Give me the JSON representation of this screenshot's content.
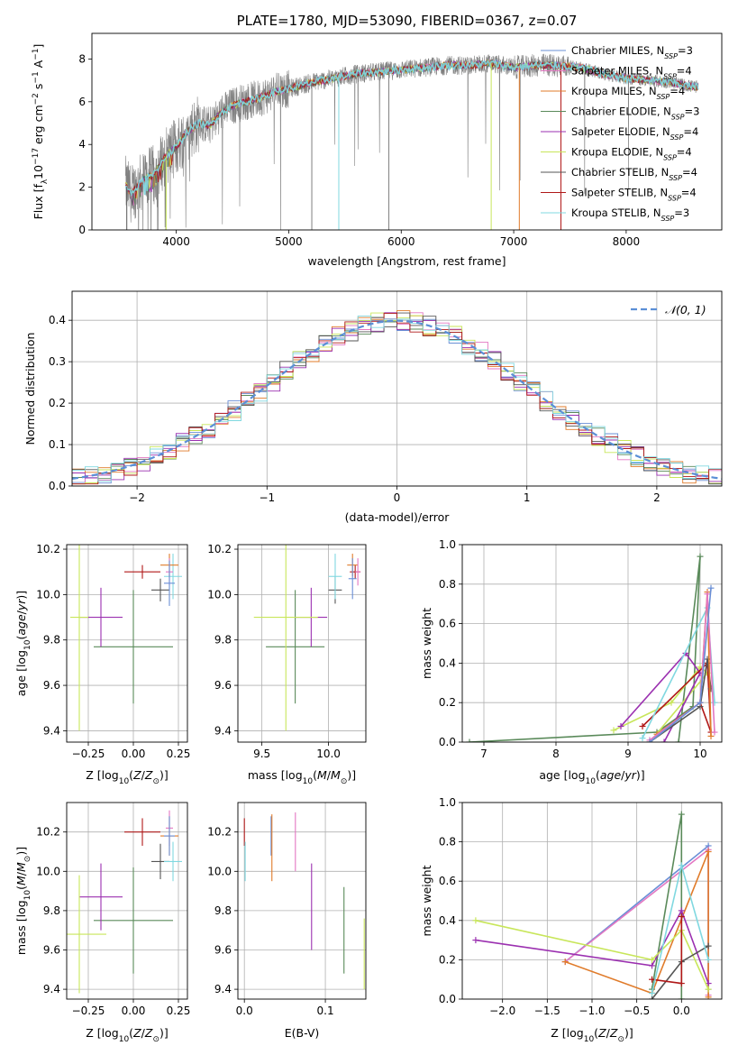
{
  "chart_data": [
    {
      "type": "line",
      "title": "PLATE=1780, MJD=53090, FIBERID=0367, z=0.07",
      "xlabel": "wavelength [Angstrom, rest frame]",
      "ylabel": "Flux [f_λ10^-17 erg cm^-2 s^-1 A^-1]",
      "xlim": [
        3250,
        8850
      ],
      "ylim": [
        0,
        9.2
      ],
      "xticks": [
        4000,
        5000,
        6000,
        7000,
        8000
      ],
      "yticks": [
        0,
        2,
        4,
        6,
        8
      ],
      "grid": false,
      "legend_placement": "upper-right",
      "spectrum_x": [
        3550,
        3600,
        3700,
        3800,
        3900,
        4000,
        4100,
        4200,
        4300,
        4400,
        4500,
        4600,
        4700,
        4800,
        4900,
        5000,
        5200,
        5400,
        5600,
        5800,
        6000,
        6200,
        6400,
        6600,
        6800,
        7000,
        7200,
        7400,
        7600,
        7800,
        8000,
        8200,
        8400,
        8600
      ],
      "spectrum_y": [
        2.1,
        1.7,
        2.3,
        2.6,
        3.4,
        3.9,
        4.6,
        5.0,
        4.9,
        5.5,
        5.8,
        6.0,
        6.1,
        6.3,
        6.5,
        6.6,
        6.9,
        7.1,
        7.3,
        7.4,
        7.5,
        7.6,
        7.7,
        7.7,
        7.8,
        7.6,
        7.7,
        7.7,
        7.6,
        7.3,
        7.1,
        7.0,
        6.9,
        6.7
      ],
      "series": [
        {
          "name": "Chabrier MILES",
          "nssp": "3",
          "color": "#6a8fd6"
        },
        {
          "name": "Salpeter MILES",
          "nssp": "4",
          "color": "#e377c2"
        },
        {
          "name": "Kroupa MILES",
          "nssp": "4",
          "color": "#e07b2a"
        },
        {
          "name": "Chabrier ELODIE",
          "nssp": "3",
          "color": "#5a8a5a"
        },
        {
          "name": "Salpeter ELODIE",
          "nssp": "4",
          "color": "#9b30b0"
        },
        {
          "name": "Kroupa ELODIE",
          "nssp": "4",
          "color": "#c8e65a"
        },
        {
          "name": "Chabrier STELIB",
          "nssp": "4",
          "color": "#555555"
        },
        {
          "name": "Salpeter STELIB",
          "nssp": "4",
          "color": "#b01818"
        },
        {
          "name": "Kroupa STELIB",
          "nssp": "3",
          "color": "#80d8e0"
        }
      ]
    },
    {
      "type": "line",
      "xlabel": "(data-model)/error",
      "ylabel": "Normed distribution",
      "xlim": [
        -2.5,
        2.5
      ],
      "ylim": [
        0,
        0.47
      ],
      "xticks": [
        -2,
        -1,
        0,
        1,
        2
      ],
      "yticks": [
        0.0,
        0.1,
        0.2,
        0.3,
        0.4
      ],
      "grid": true,
      "legend": "𝒩(0, 1)",
      "legend_placement": "upper-right",
      "hist_bin_width": 0.1,
      "hist_bins_from": -2.5,
      "gaussian_mean": 0,
      "gaussian_sigma": 1
    },
    {
      "type": "scatter",
      "xlabel": "Z [log10(Z/Z⊙)]",
      "ylabel": "age  [log10(age/yr)]",
      "xlim": [
        -0.37,
        0.3
      ],
      "ylim": [
        9.35,
        10.22
      ],
      "xticks": [
        -0.25,
        0.0,
        0.25
      ],
      "xtick_labels": [
        "−0.25",
        "0.00",
        "0.25"
      ],
      "yticks": [
        9.4,
        9.6,
        9.8,
        10.0,
        10.2
      ],
      "grid": true,
      "points": [
        {
          "x": 0.0,
          "y": 9.77,
          "xerr": 0.22,
          "yerr": 0.25,
          "series": "Chabrier ELODIE"
        },
        {
          "x": -0.18,
          "y": 9.9,
          "xerr": 0.12,
          "yerr": 0.13,
          "series": "Salpeter ELODIE"
        },
        {
          "x": -0.3,
          "y": 9.9,
          "xerr": 0.05,
          "yerr": 0.5,
          "series": "Kroupa ELODIE"
        },
        {
          "x": 0.15,
          "y": 10.02,
          "xerr": 0.05,
          "yerr": 0.05,
          "series": "Chabrier STELIB"
        },
        {
          "x": 0.05,
          "y": 10.1,
          "xerr": 0.1,
          "yerr": 0.03,
          "series": "Salpeter STELIB"
        },
        {
          "x": 0.22,
          "y": 10.08,
          "xerr": 0.05,
          "yerr": 0.1,
          "series": "Kroupa STELIB"
        },
        {
          "x": 0.2,
          "y": 10.13,
          "xerr": 0.05,
          "yerr": 0.05,
          "series": "Kroupa MILES"
        },
        {
          "x": 0.2,
          "y": 10.1,
          "xerr": 0.02,
          "yerr": 0.06,
          "series": "Salpeter MILES"
        },
        {
          "x": 0.2,
          "y": 10.05,
          "xerr": 0.03,
          "yerr": 0.1,
          "series": "Chabrier MILES"
        }
      ]
    },
    {
      "type": "scatter",
      "xlabel": "mass [log10(M/M⊙)]",
      "ylabel": "",
      "xlim": [
        9.32,
        10.28
      ],
      "ylim": [
        9.35,
        10.22
      ],
      "xticks": [
        9.5,
        10.0
      ],
      "yticks": [
        9.4,
        9.6,
        9.8,
        10.0,
        10.2
      ],
      "grid": true,
      "points": [
        {
          "x": 9.75,
          "y": 9.77,
          "xerr": 0.22,
          "yerr": 0.25,
          "series": "Chabrier ELODIE"
        },
        {
          "x": 9.87,
          "y": 9.9,
          "xerr": 0.12,
          "yerr": 0.13,
          "series": "Salpeter ELODIE"
        },
        {
          "x": 9.68,
          "y": 9.9,
          "xerr": 0.24,
          "yerr": 0.5,
          "series": "Kroupa ELODIE"
        },
        {
          "x": 10.05,
          "y": 10.02,
          "xerr": 0.05,
          "yerr": 0.06,
          "series": "Chabrier STELIB"
        },
        {
          "x": 10.2,
          "y": 10.1,
          "xerr": 0.04,
          "yerr": 0.03,
          "series": "Salpeter STELIB"
        },
        {
          "x": 10.05,
          "y": 10.08,
          "xerr": 0.05,
          "yerr": 0.1,
          "series": "Kroupa STELIB"
        },
        {
          "x": 10.18,
          "y": 10.13,
          "xerr": 0.04,
          "yerr": 0.05,
          "series": "Kroupa MILES"
        },
        {
          "x": 10.22,
          "y": 10.1,
          "xerr": 0.02,
          "yerr": 0.06,
          "series": "Salpeter MILES"
        },
        {
          "x": 10.18,
          "y": 10.07,
          "xerr": 0.03,
          "yerr": 0.09,
          "series": "Chabrier MILES"
        }
      ]
    },
    {
      "type": "line",
      "xlabel": "age  [log10(age/yr)]",
      "ylabel": "mass weight",
      "xlim": [
        6.7,
        10.3
      ],
      "ylim": [
        0,
        1.0
      ],
      "xticks": [
        7,
        8,
        9,
        10
      ],
      "yticks": [
        0.0,
        0.2,
        0.4,
        0.6,
        0.8,
        1.0
      ],
      "grid": true,
      "series": [
        {
          "name": "Chabrier ELODIE",
          "x": [
            6.8,
            9.4,
            9.9,
            10.0,
            9.7
          ],
          "y": [
            0.0,
            0.05,
            0.18,
            0.94,
            0.0
          ]
        },
        {
          "name": "Kroupa ELODIE",
          "x": [
            8.8,
            9.6,
            10.0,
            10.1,
            9.3
          ],
          "y": [
            0.06,
            0.2,
            0.38,
            0.35,
            0.0
          ]
        },
        {
          "name": "Salpeter ELODIE",
          "x": [
            8.9,
            9.8,
            10.0,
            9.5
          ],
          "y": [
            0.08,
            0.45,
            0.35,
            0.0
          ]
        },
        {
          "name": "Salpeter STELIB",
          "x": [
            9.2,
            10.1,
            10.15,
            10.0
          ],
          "y": [
            0.08,
            0.4,
            0.05,
            0.2
          ]
        },
        {
          "name": "Chabrier STELIB",
          "x": [
            9.3,
            10.0,
            10.1,
            10.15
          ],
          "y": [
            0.0,
            0.18,
            0.42,
            0.27
          ]
        },
        {
          "name": "Kroupa STELIB",
          "x": [
            9.2,
            10.1,
            10.2
          ],
          "y": [
            0.02,
            0.68,
            0.2
          ]
        },
        {
          "name": "Kroupa MILES",
          "x": [
            9.4,
            10.0,
            10.1,
            10.15
          ],
          "y": [
            0.04,
            0.2,
            0.76,
            0.03
          ]
        },
        {
          "name": "Salpeter MILES",
          "x": [
            9.3,
            10.0,
            10.1,
            10.2
          ],
          "y": [
            0.01,
            0.2,
            0.75,
            0.05
          ]
        },
        {
          "name": "Chabrier MILES",
          "x": [
            9.3,
            10.0,
            10.15
          ],
          "y": [
            0.0,
            0.2,
            0.78
          ]
        }
      ]
    },
    {
      "type": "scatter",
      "xlabel": "Z [log10(Z/Z⊙)]",
      "ylabel": "mass [log10(M/M⊙)]",
      "xlim": [
        -0.37,
        0.3
      ],
      "ylim": [
        9.35,
        10.35
      ],
      "xticks": [
        -0.25,
        0.0,
        0.25
      ],
      "xtick_labels": [
        "−0.25",
        "0.00",
        "0.25"
      ],
      "yticks": [
        9.4,
        9.6,
        9.8,
        10.0,
        10.2
      ],
      "grid": true,
      "points": [
        {
          "x": 0.0,
          "y": 9.75,
          "xerr": 0.22,
          "yerr": 0.27,
          "series": "Chabrier ELODIE"
        },
        {
          "x": -0.18,
          "y": 9.87,
          "xerr": 0.12,
          "yerr": 0.17,
          "series": "Salpeter ELODIE"
        },
        {
          "x": -0.3,
          "y": 9.68,
          "xerr": 0.15,
          "yerr": 0.3,
          "series": "Kroupa ELODIE"
        },
        {
          "x": 0.15,
          "y": 10.05,
          "xerr": 0.05,
          "yerr": 0.09,
          "series": "Chabrier STELIB"
        },
        {
          "x": 0.05,
          "y": 10.2,
          "xerr": 0.1,
          "yerr": 0.07,
          "series": "Salpeter STELIB"
        },
        {
          "x": 0.22,
          "y": 10.05,
          "xerr": 0.05,
          "yerr": 0.1,
          "series": "Kroupa STELIB"
        },
        {
          "x": 0.2,
          "y": 10.18,
          "xerr": 0.05,
          "yerr": 0.1,
          "series": "Kroupa MILES"
        },
        {
          "x": 0.2,
          "y": 10.22,
          "xerr": 0.02,
          "yerr": 0.09,
          "series": "Salpeter MILES"
        },
        {
          "x": 0.2,
          "y": 10.18,
          "xerr": 0.03,
          "yerr": 0.1,
          "series": "Chabrier MILES"
        }
      ]
    },
    {
      "type": "scatter",
      "xlabel": "E(B-V)",
      "ylabel": "",
      "xlim": [
        -0.008,
        0.15
      ],
      "ylim": [
        9.35,
        10.35
      ],
      "xticks": [
        0.0,
        0.1
      ],
      "yticks": [
        9.4,
        9.6,
        9.8,
        10.0,
        10.2
      ],
      "grid": true,
      "points": [
        {
          "x": 0.0,
          "y": 10.2,
          "yerr": 0.07,
          "series": "Salpeter STELIB"
        },
        {
          "x": 0.001,
          "y": 10.05,
          "yerr": 0.1,
          "series": "Kroupa STELIB"
        },
        {
          "x": 0.033,
          "y": 10.18,
          "yerr": 0.1,
          "series": "Chabrier MILES"
        },
        {
          "x": 0.034,
          "y": 10.12,
          "yerr": 0.17,
          "series": "Kroupa MILES"
        },
        {
          "x": 0.063,
          "y": 10.15,
          "yerr": 0.15,
          "series": "Salpeter MILES"
        },
        {
          "x": 0.083,
          "y": 9.82,
          "yerr": 0.22,
          "series": "Salpeter ELODIE"
        },
        {
          "x": 0.123,
          "y": 9.7,
          "yerr": 0.22,
          "series": "Chabrier ELODIE"
        },
        {
          "x": 0.148,
          "y": 9.58,
          "yerr": 0.18,
          "series": "Kroupa ELODIE"
        }
      ]
    },
    {
      "type": "line",
      "xlabel": "Z [log10(Z/Z⊙)]",
      "ylabel": "mass weight",
      "xlim": [
        -2.45,
        0.45
      ],
      "ylim": [
        0,
        1.0
      ],
      "xticks": [
        -2.0,
        -1.5,
        -1.0,
        -0.5,
        0.0
      ],
      "xtick_labels": [
        "−2.0",
        "−1.5",
        "−1.0",
        "−0.5",
        "0.0"
      ],
      "yticks": [
        0.0,
        0.2,
        0.4,
        0.6,
        0.8,
        1.0
      ],
      "grid": true,
      "series": [
        {
          "name": "Chabrier MILES",
          "x": [
            -1.3,
            0.3,
            0.3
          ],
          "y": [
            0.19,
            0.78,
            0.05
          ]
        },
        {
          "name": "Salpeter MILES",
          "x": [
            -1.3,
            0.3,
            0.3
          ],
          "y": [
            0.19,
            0.76,
            0.02
          ]
        },
        {
          "name": "Kroupa MILES",
          "x": [
            -1.3,
            -0.33,
            0.3,
            0.3
          ],
          "y": [
            0.19,
            0.03,
            0.75,
            0.01
          ]
        },
        {
          "name": "Chabrier ELODIE",
          "x": [
            -0.33,
            0.0,
            0.0
          ],
          "y": [
            0.05,
            0.94,
            0.0
          ]
        },
        {
          "name": "Salpeter ELODIE",
          "x": [
            -2.3,
            -0.33,
            0.0,
            0.3
          ],
          "y": [
            0.3,
            0.17,
            0.45,
            0.08
          ]
        },
        {
          "name": "Kroupa ELODIE",
          "x": [
            -2.3,
            -0.33,
            0.0,
            0.3
          ],
          "y": [
            0.4,
            0.2,
            0.35,
            0.05
          ]
        },
        {
          "name": "Chabrier STELIB",
          "x": [
            -0.33,
            0.0,
            0.3
          ],
          "y": [
            0.0,
            0.19,
            0.27
          ]
        },
        {
          "name": "Salpeter STELIB",
          "x": [
            -0.33,
            0.0,
            0.0
          ],
          "y": [
            0.1,
            0.08,
            0.42
          ]
        },
        {
          "name": "Kroupa STELIB",
          "x": [
            -0.33,
            0.0,
            0.3
          ],
          "y": [
            0.03,
            0.68,
            0.2
          ]
        }
      ]
    }
  ]
}
